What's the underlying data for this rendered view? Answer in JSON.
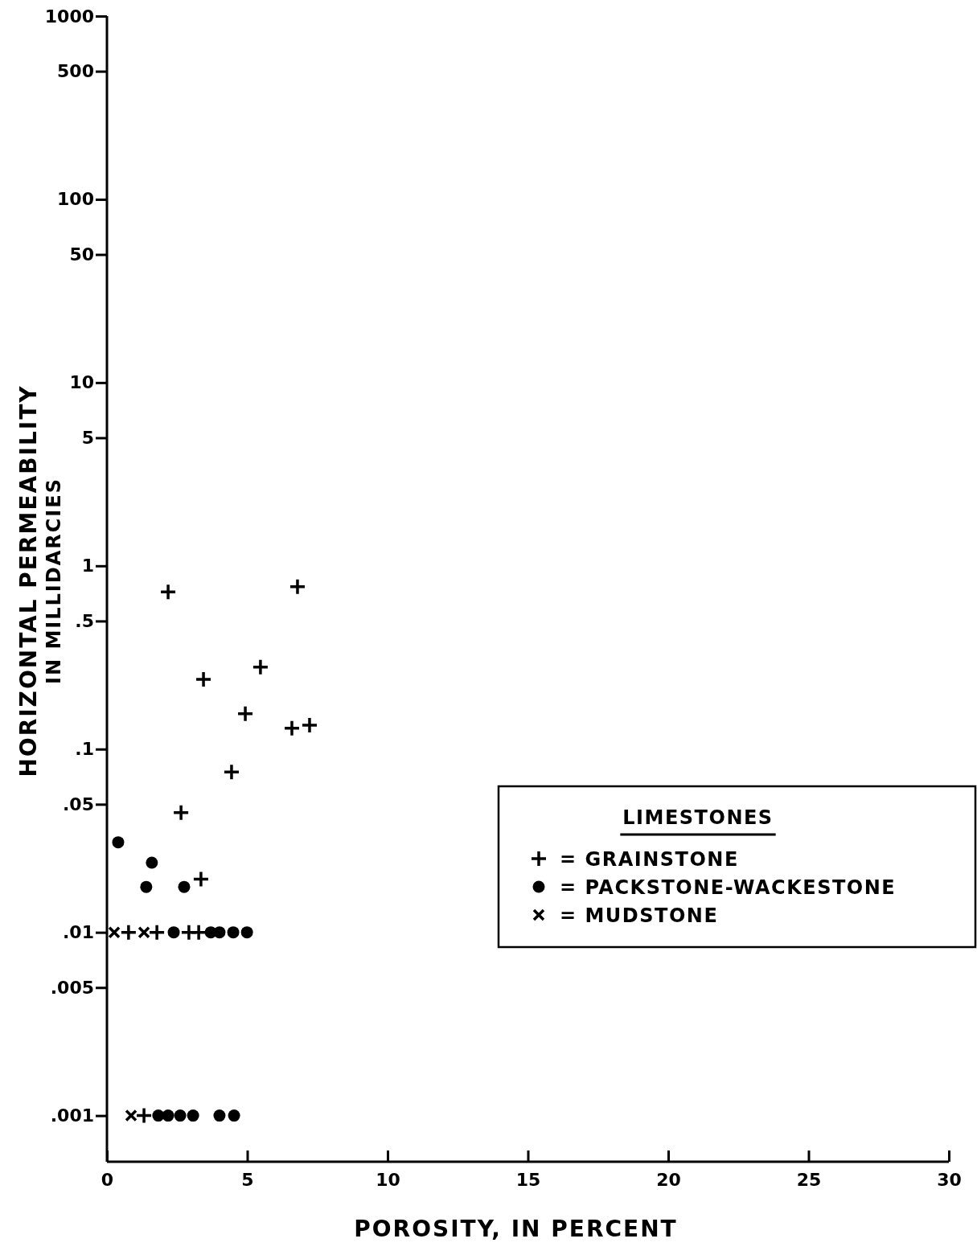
{
  "chart_data": {
    "type": "scatter",
    "xlabel": "POROSITY, IN PERCENT",
    "ylabel": "HORIZONTAL PERMEABILITY IN MILLIDARCIES",
    "legend_title": "LIMESTONES",
    "legend": "right",
    "log": "y",
    "xlim": [
      0,
      30
    ],
    "xticks": [
      0,
      5,
      10,
      15,
      20,
      25,
      30
    ],
    "ylim": [
      0.00056,
      1000
    ],
    "yticks": [
      1000,
      500,
      100,
      50,
      10,
      5,
      1,
      {
        "value": 0.5,
        "label": ".5"
      },
      {
        "value": 0.1,
        "label": ".1"
      },
      {
        "value": 0.05,
        "label": ".05"
      },
      {
        "value": 0.01,
        "label": ".01"
      },
      {
        "value": 0.005,
        "label": ".005"
      },
      {
        "value": 0.001,
        "label": ".001"
      }
    ],
    "series": [
      {
        "name": "= GRAINSTONE",
        "color": "#000000",
        "marker": "cross",
        "x": [
          2.18,
          6.79,
          5.47,
          3.44,
          4.93,
          6.59,
          7.22,
          4.44,
          2.64,
          3.35,
          0.77,
          1.78,
          2.92,
          3.27,
          1.32
        ],
        "values": [
          0.72,
          0.77,
          0.28,
          0.24,
          0.156,
          0.13,
          0.135,
          0.075,
          0.045,
          0.0195,
          0.01,
          0.01,
          0.01,
          0.01,
          0.001
        ]
      },
      {
        "name": "= PACKSTONE-WACKESTONE",
        "color": "#000000",
        "marker": "circle",
        "x": [
          0.4,
          1.6,
          1.4,
          2.75,
          2.38,
          3.7,
          4.01,
          4.5,
          4.99,
          1.83,
          2.18,
          2.61,
          3.07,
          4.01,
          4.53
        ],
        "values": [
          0.031,
          0.024,
          0.0177,
          0.0177,
          0.01,
          0.01,
          0.01,
          0.01,
          0.01,
          0.001,
          0.001,
          0.001,
          0.001,
          0.001,
          0.001
        ]
      },
      {
        "name": "= MUDSTONE",
        "color": "#000000",
        "marker": "x",
        "x": [
          0.26,
          1.32,
          0.86
        ],
        "values": [
          0.01,
          0.01,
          0.001
        ]
      }
    ]
  }
}
